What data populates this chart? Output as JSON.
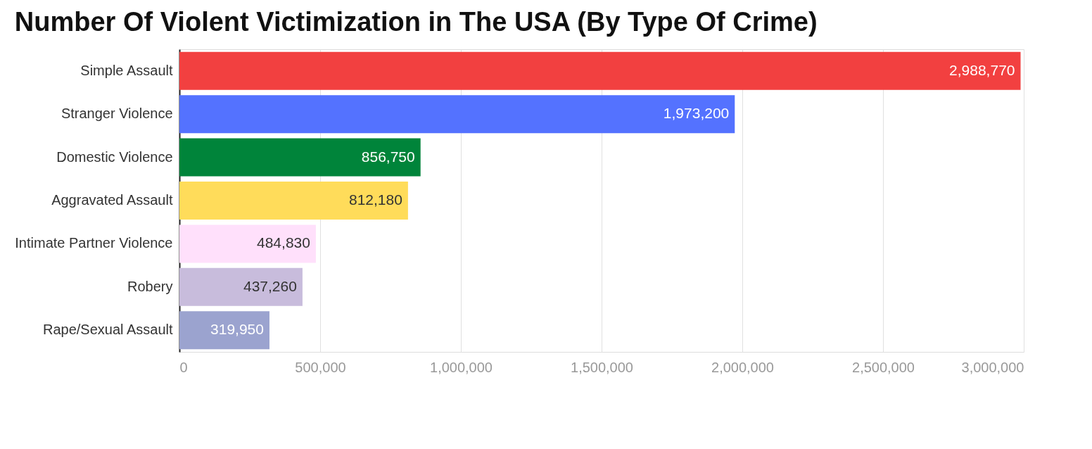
{
  "chart_data": {
    "type": "bar",
    "orientation": "horizontal",
    "title": "Number Of Violent Victimization in The USA (By Type Of Crime)",
    "categories": [
      "Simple Assault",
      "Stranger Violence",
      "Domestic Violence",
      "Aggravated Assault",
      "Intimate Partner Violence",
      "Robery",
      "Rape/Sexual Assault"
    ],
    "values": [
      2988770,
      1973200,
      856750,
      812180,
      484830,
      437260,
      319950
    ],
    "colors": [
      "#f24040",
      "#5472ff",
      "#00843a",
      "#ffdc5a",
      "#ffe0fb",
      "#c8bcdc",
      "#9ba3cf"
    ],
    "value_labels": [
      "2,988,770",
      "1,973,200",
      "856,750",
      "812,180",
      "484,830",
      "437,260",
      "319,950"
    ],
    "xlim": [
      0,
      3000000
    ],
    "xticks": [
      0,
      {
        "value": 500000,
        "label": "500,000"
      },
      {
        "value": 1000000,
        "label": "1,000,000"
      },
      {
        "value": 1500000,
        "label": "1,500,000"
      },
      {
        "value": 2000000,
        "label": "2,000,000"
      },
      {
        "value": 2500000,
        "label": "2,500,000"
      },
      {
        "value": 3000000,
        "label": "3,000,000"
      }
    ],
    "grid": "x"
  }
}
